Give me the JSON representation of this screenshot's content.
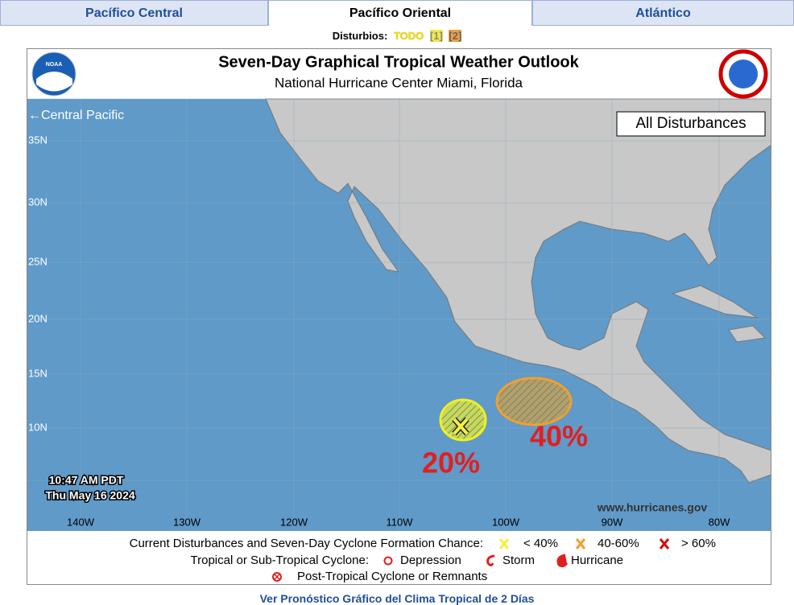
{
  "tabs": [
    "Pacífico Central",
    "Pacífico Oriental",
    "Atlántico"
  ],
  "disturbances_bar": {
    "label": "Disturbios:",
    "links": [
      "TODO",
      "[1]",
      "[2]"
    ]
  },
  "header": {
    "logo_left": "NOAA",
    "title": "Seven-Day Graphical Tropical Weather Outlook",
    "subtitle": "National Hurricane Center  Miami, Florida"
  },
  "map": {
    "central_pacific": "←Central Pacific",
    "view": "All Disturbances",
    "lat_labels": [
      "35N",
      "30N",
      "25N",
      "20N",
      "15N",
      "10N"
    ],
    "lon_labels": [
      "140W",
      "130W",
      "120W",
      "110W",
      "100W",
      "90W",
      "80W"
    ],
    "timestamp": [
      "10:47 AM PDT",
      "Thu May 16 2024"
    ],
    "chances": [
      "20%",
      "40%"
    ],
    "credit": "www.hurricanes.gov"
  },
  "legend": {
    "row1": {
      "label": "Current Disturbances and Seven-Day Cyclone Formation Chance:",
      "items": [
        "< 40%",
        "40-60%",
        "> 60%"
      ]
    },
    "row2": {
      "label": "Tropical or Sub-Tropical Cyclone:",
      "items": [
        "Depression",
        "Storm",
        "Hurricane"
      ]
    },
    "row3": "Post-Tropical Cyclone or Remnants"
  },
  "footer_link": "Ver Pronóstico Gráfico del Clima Tropical de 2 Días"
}
